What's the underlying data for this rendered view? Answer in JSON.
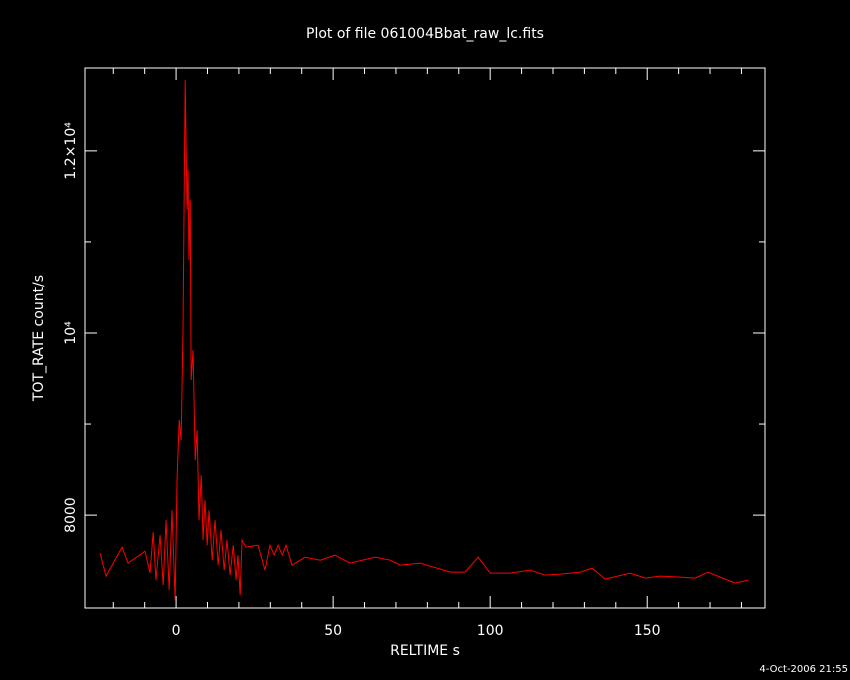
{
  "chart_data": {
    "type": "line",
    "title": "Plot of file 061004Bbat_raw_lc.fits",
    "x_label": "RELTIME  s",
    "y_label": "TOT_RATE  count/s",
    "timestamp": "4-Oct-2006 21:55",
    "xlim": [
      -29,
      187.5
    ],
    "ylim": [
      6980,
      12910
    ],
    "xticks": [
      0,
      50,
      100,
      150
    ],
    "xminorticks": [
      -20,
      -10,
      10,
      20,
      30,
      40,
      60,
      70,
      80,
      90,
      110,
      120,
      130,
      140,
      160,
      170,
      180
    ],
    "yticks": [
      8000,
      {
        "value": 10000,
        "label": "10⁴"
      },
      {
        "value": 12000,
        "label": "1.2×10⁴"
      }
    ],
    "yminorticks": [
      9000,
      11000
    ],
    "series": [
      {
        "name": "TOT_RATE",
        "color": "#ff0000",
        "x": [
          -24.2,
          -22.3,
          -17.2,
          -15.3,
          -9.9,
          -8.3,
          -7.3,
          -6.4,
          -5.1,
          -4.1,
          -3.2,
          -2.2,
          -1.3,
          -0.3,
          0.3,
          1.0,
          1.6,
          2.2,
          2.9,
          3.2,
          3.5,
          3.8,
          4.1,
          4.5,
          4.8,
          5.4,
          6.1,
          6.7,
          7.3,
          8.0,
          8.6,
          9.2,
          9.9,
          10.5,
          11.5,
          12.4,
          13.4,
          14.3,
          15.3,
          16.2,
          17.2,
          18.2,
          19.1,
          19.7,
          20.4,
          21.0,
          22.3,
          26.1,
          28.3,
          29.9,
          31.2,
          32.5,
          33.8,
          35.0,
          36.9,
          41.1,
          45.9,
          50.6,
          55.4,
          63.4,
          68.2,
          71.3,
          77.7,
          87.3,
          92.0,
          96.2,
          100.0,
          106.4,
          112.7,
          117.5,
          122.3,
          128.7,
          132.5,
          136.6,
          144.6,
          149.4,
          154.1,
          160.5,
          165.3,
          169.4,
          173.2,
          178.0,
          182.2
        ],
        "values": [
          7582,
          7330,
          7648,
          7473,
          7604,
          7363,
          7813,
          7286,
          7780,
          7231,
          7945,
          7176,
          8055,
          7066,
          8385,
          9044,
          8824,
          10033,
          12780,
          12011,
          11352,
          11791,
          10802,
          11462,
          9484,
          9813,
          8604,
          8934,
          7945,
          8440,
          7725,
          8165,
          7670,
          8055,
          7505,
          7945,
          7451,
          7835,
          7396,
          7725,
          7341,
          7670,
          7286,
          7560,
          7121,
          7725,
          7648,
          7670,
          7396,
          7670,
          7560,
          7670,
          7560,
          7670,
          7451,
          7538,
          7505,
          7560,
          7473,
          7538,
          7505,
          7451,
          7473,
          7374,
          7374,
          7538,
          7363,
          7363,
          7396,
          7341,
          7352,
          7374,
          7418,
          7297,
          7363,
          7308,
          7330,
          7319,
          7308,
          7374,
          7319,
          7253,
          7286
        ]
      }
    ]
  }
}
